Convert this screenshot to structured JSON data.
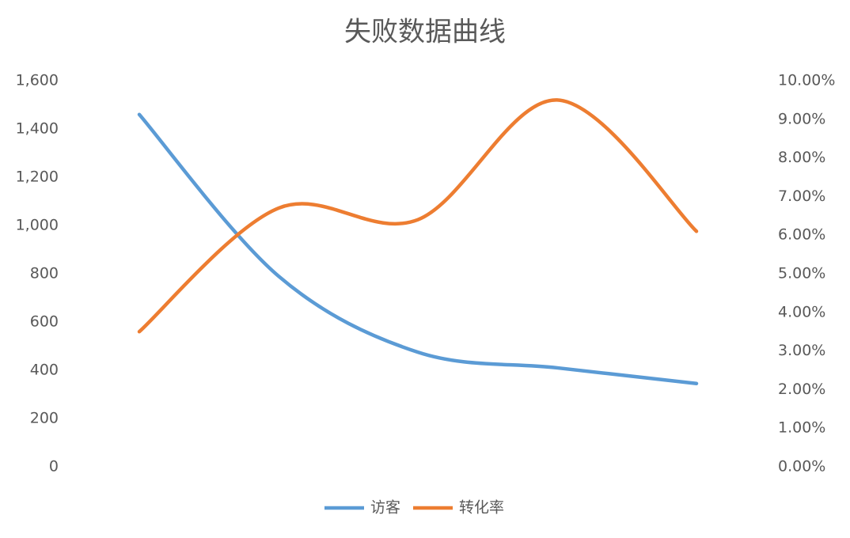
{
  "chart_data": {
    "type": "line",
    "title": "失败数据曲线",
    "categories": [
      null,
      null,
      null,
      null,
      null
    ],
    "smooth": true,
    "grid": false,
    "legend": "bottom",
    "series": [
      {
        "name": "访客",
        "color": "#5b9bd5",
        "values": [
          1460,
          790,
          475,
          410,
          345
        ]
      },
      {
        "name": "转化率",
        "color": "#ed7d31",
        "axis": "y2",
        "values": [
          3.5,
          6.7,
          6.4,
          9.5,
          6.1
        ]
      }
    ],
    "ylim": [
      0,
      1600
    ],
    "yticks": [
      0,
      200,
      400,
      600,
      800,
      {
        "value": 1000,
        "label": "1,000"
      },
      {
        "value": 1200,
        "label": "1,200"
      },
      {
        "value": 1400,
        "label": "1,400"
      },
      {
        "value": 1600,
        "label": "1,600"
      }
    ],
    "y2lim": [
      0,
      10
    ],
    "y2ticks": [
      {
        "value": 0,
        "label": "0.00%"
      },
      {
        "value": 1,
        "label": "1.00%"
      },
      {
        "value": 2,
        "label": "2.00%"
      },
      {
        "value": 3,
        "label": "3.00%"
      },
      {
        "value": 4,
        "label": "4.00%"
      },
      {
        "value": 5,
        "label": "5.00%"
      },
      {
        "value": 6,
        "label": "6.00%"
      },
      {
        "value": 7,
        "label": "7.00%"
      },
      {
        "value": 8,
        "label": "8.00%"
      },
      {
        "value": 9,
        "label": "9.00%"
      },
      {
        "value": 10,
        "label": "10.00%"
      }
    ]
  }
}
